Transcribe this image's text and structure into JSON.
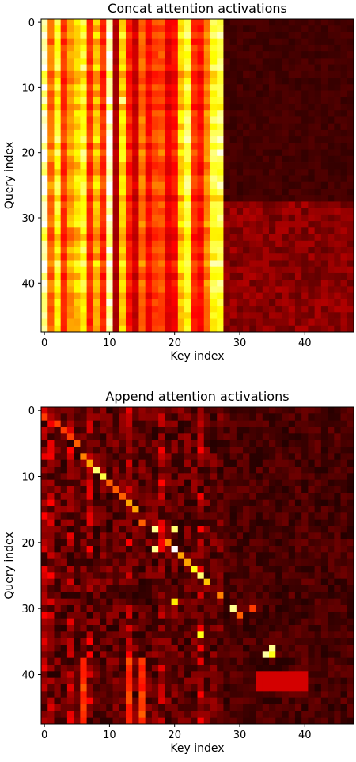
{
  "chart_data": [
    {
      "type": "heatmap",
      "title": "Concat attention activations",
      "xlabel": "Key index",
      "ylabel": "Query index",
      "xticks": [
        0,
        10,
        20,
        30,
        40
      ],
      "yticks": [
        0,
        10,
        20,
        30,
        40
      ],
      "xlim": [
        -0.5,
        47.5
      ],
      "ylim": [
        47.5,
        -0.5
      ],
      "colormap": "hot",
      "n_rows": 48,
      "n_cols": 48,
      "col_values": [
        0.97,
        0.55,
        0.78,
        0.45,
        0.62,
        0.7,
        0.8,
        0.45,
        0.65,
        0.45,
        0.98,
        0.25,
        0.72,
        0.42,
        0.3,
        0.55,
        0.38,
        0.48,
        0.5,
        0.35,
        0.4,
        0.7,
        0.82,
        0.45,
        0.4,
        0.58,
        0.82,
        0.85,
        0.2,
        0.12,
        0.1,
        0.12,
        0.1,
        0.12,
        0.1,
        0.12,
        0.1,
        0.12,
        0.1,
        0.12,
        0.1,
        0.12,
        0.1,
        0.12,
        0.1,
        0.12,
        0.1,
        0.12
      ],
      "notes": [
        {
          "row": 37,
          "col": 0,
          "value": 1.0
        },
        {
          "row": 37,
          "col": 10,
          "value": 1.0
        },
        {
          "row": 12,
          "col": 12,
          "value": 0.88
        }
      ]
    },
    {
      "type": "heatmap",
      "title": "Append attention activations",
      "xlabel": "Key index",
      "ylabel": "Query index",
      "xticks": [
        0,
        10,
        20,
        30,
        40
      ],
      "yticks": [
        0,
        10,
        20,
        30,
        40
      ],
      "xlim": [
        -0.5,
        47.5
      ],
      "ylim": [
        47.5,
        -0.5
      ],
      "colormap": "hot",
      "n_rows": 48,
      "n_cols": 48,
      "diagonal_peaks": [
        {
          "row": 1,
          "col": 0,
          "value": 0.45
        },
        {
          "row": 2,
          "col": 2,
          "value": 0.45
        },
        {
          "row": 3,
          "col": 3,
          "value": 0.45
        },
        {
          "row": 4,
          "col": 4,
          "value": 0.45
        },
        {
          "row": 5,
          "col": 5,
          "value": 0.5
        },
        {
          "row": 7,
          "col": 6,
          "value": 0.55
        },
        {
          "row": 8,
          "col": 7,
          "value": 0.6
        },
        {
          "row": 9,
          "col": 8,
          "value": 0.85
        },
        {
          "row": 10,
          "col": 9,
          "value": 0.8
        },
        {
          "row": 11,
          "col": 10,
          "value": 0.5
        },
        {
          "row": 12,
          "col": 11,
          "value": 0.5
        },
        {
          "row": 13,
          "col": 12,
          "value": 0.5
        },
        {
          "row": 14,
          "col": 13,
          "value": 0.6
        },
        {
          "row": 15,
          "col": 14,
          "value": 0.6
        },
        {
          "row": 17,
          "col": 15,
          "value": 0.5
        },
        {
          "row": 18,
          "col": 17,
          "value": 0.88
        },
        {
          "row": 18,
          "col": 20,
          "value": 0.85
        },
        {
          "row": 20,
          "col": 19,
          "value": 0.55
        },
        {
          "row": 21,
          "col": 17,
          "value": 0.88
        },
        {
          "row": 21,
          "col": 20,
          "value": 1.0
        },
        {
          "row": 22,
          "col": 21,
          "value": 0.6
        },
        {
          "row": 23,
          "col": 22,
          "value": 0.6
        },
        {
          "row": 24,
          "col": 23,
          "value": 0.75
        },
        {
          "row": 25,
          "col": 24,
          "value": 0.85
        },
        {
          "row": 26,
          "col": 25,
          "value": 0.65
        },
        {
          "row": 28,
          "col": 27,
          "value": 0.55
        },
        {
          "row": 30,
          "col": 29,
          "value": 0.88
        },
        {
          "row": 31,
          "col": 30,
          "value": 0.5
        },
        {
          "row": 30,
          "col": 32,
          "value": 0.45
        },
        {
          "row": 34,
          "col": 24,
          "value": 0.75
        },
        {
          "row": 36,
          "col": 35,
          "value": 0.88
        },
        {
          "row": 37,
          "col": 34,
          "value": 0.9
        },
        {
          "row": 37,
          "col": 35,
          "value": 0.75
        },
        {
          "row": 29,
          "col": 20,
          "value": 0.7
        }
      ]
    }
  ]
}
